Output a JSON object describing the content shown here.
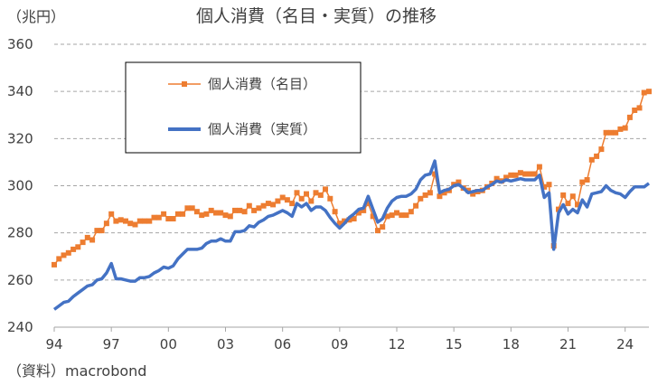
{
  "chart_data": {
    "type": "line",
    "title": "個人消費（名目・実質）の推移",
    "unit_label": "（兆円）",
    "source": "（資料）macrobond",
    "ylim": [
      240,
      360
    ],
    "yticks": [
      240,
      260,
      280,
      300,
      320,
      340,
      360
    ],
    "xlim": [
      1994.0,
      2025.25
    ],
    "xticks": [
      {
        "x": 1994,
        "label": "94"
      },
      {
        "x": 1997,
        "label": "97"
      },
      {
        "x": 2000,
        "label": "00"
      },
      {
        "x": 2003,
        "label": "03"
      },
      {
        "x": 2006,
        "label": "06"
      },
      {
        "x": 2009,
        "label": "09"
      },
      {
        "x": 2012,
        "label": "12"
      },
      {
        "x": 2015,
        "label": "15"
      },
      {
        "x": 2018,
        "label": "18"
      },
      {
        "x": 2021,
        "label": "21"
      },
      {
        "x": 2024,
        "label": "24"
      }
    ],
    "legend_position": "top-left",
    "grid": true,
    "series": [
      {
        "name": "個人消費（名目）",
        "color": "#ed7d31",
        "marker": "square",
        "values": [
          [
            1994.0,
            266.5
          ],
          [
            1994.25,
            269
          ],
          [
            1994.5,
            270.5
          ],
          [
            1994.75,
            271.5
          ],
          [
            1995.0,
            273
          ],
          [
            1995.25,
            274
          ],
          [
            1995.5,
            276
          ],
          [
            1995.75,
            278
          ],
          [
            1996.0,
            277
          ],
          [
            1996.25,
            281
          ],
          [
            1996.5,
            281
          ],
          [
            1996.75,
            284
          ],
          [
            1997.0,
            288
          ],
          [
            1997.25,
            285
          ],
          [
            1997.5,
            285.5
          ],
          [
            1997.75,
            285
          ],
          [
            1998.0,
            284
          ],
          [
            1998.25,
            283.5
          ],
          [
            1998.5,
            285
          ],
          [
            1998.75,
            285
          ],
          [
            1999.0,
            285
          ],
          [
            1999.25,
            286.5
          ],
          [
            1999.5,
            286.5
          ],
          [
            1999.75,
            288
          ],
          [
            2000.0,
            286
          ],
          [
            2000.25,
            286
          ],
          [
            2000.5,
            288
          ],
          [
            2000.75,
            288
          ],
          [
            2001.0,
            290.5
          ],
          [
            2001.25,
            290.5
          ],
          [
            2001.5,
            289
          ],
          [
            2001.75,
            287.5
          ],
          [
            2002.0,
            288
          ],
          [
            2002.25,
            289.5
          ],
          [
            2002.5,
            288.5
          ],
          [
            2002.75,
            288.5
          ],
          [
            2003.0,
            287.5
          ],
          [
            2003.25,
            287
          ],
          [
            2003.5,
            289.5
          ],
          [
            2003.75,
            289.5
          ],
          [
            2004.0,
            289
          ],
          [
            2004.25,
            291.5
          ],
          [
            2004.5,
            289.5
          ],
          [
            2004.75,
            290.5
          ],
          [
            2005.0,
            291.5
          ],
          [
            2005.25,
            292.5
          ],
          [
            2005.5,
            292
          ],
          [
            2005.75,
            293.5
          ],
          [
            2006.0,
            295
          ],
          [
            2006.25,
            294
          ],
          [
            2006.5,
            292.5
          ],
          [
            2006.75,
            297
          ],
          [
            2007.0,
            294.5
          ],
          [
            2007.25,
            296.5
          ],
          [
            2007.5,
            293.5
          ],
          [
            2007.75,
            297
          ],
          [
            2008.0,
            296
          ],
          [
            2008.25,
            298.5
          ],
          [
            2008.5,
            294.5
          ],
          [
            2008.75,
            289
          ],
          [
            2009.0,
            284
          ],
          [
            2009.25,
            285
          ],
          [
            2009.5,
            285.5
          ],
          [
            2009.75,
            286
          ],
          [
            2010.0,
            288.5
          ],
          [
            2010.25,
            289.5
          ],
          [
            2010.5,
            292.5
          ],
          [
            2010.75,
            287
          ],
          [
            2011.0,
            281
          ],
          [
            2011.25,
            282.5
          ],
          [
            2011.5,
            287
          ],
          [
            2011.75,
            287.5
          ],
          [
            2012.0,
            288.5
          ],
          [
            2012.25,
            287.5
          ],
          [
            2012.5,
            287.5
          ],
          [
            2012.75,
            289
          ],
          [
            2013.0,
            291.5
          ],
          [
            2013.25,
            294.5
          ],
          [
            2013.5,
            296
          ],
          [
            2013.75,
            297
          ],
          [
            2014.0,
            305
          ],
          [
            2014.25,
            295.5
          ],
          [
            2014.5,
            297
          ],
          [
            2014.75,
            298
          ],
          [
            2015.0,
            300.5
          ],
          [
            2015.25,
            301.5
          ],
          [
            2015.5,
            299
          ],
          [
            2015.75,
            298
          ],
          [
            2016.0,
            296.5
          ],
          [
            2016.25,
            297.5
          ],
          [
            2016.5,
            298
          ],
          [
            2016.75,
            299.5
          ],
          [
            2017.0,
            301
          ],
          [
            2017.25,
            303
          ],
          [
            2017.5,
            302
          ],
          [
            2017.75,
            303.5
          ],
          [
            2018.0,
            304.5
          ],
          [
            2018.25,
            304.5
          ],
          [
            2018.5,
            305.5
          ],
          [
            2018.75,
            305
          ],
          [
            2019.0,
            305
          ],
          [
            2019.25,
            305
          ],
          [
            2019.5,
            308
          ],
          [
            2019.75,
            299.5
          ],
          [
            2020.0,
            300.5
          ],
          [
            2020.25,
            274.5
          ],
          [
            2020.5,
            290
          ],
          [
            2020.75,
            296
          ],
          [
            2021.0,
            292.5
          ],
          [
            2021.25,
            295.5
          ],
          [
            2021.5,
            292
          ],
          [
            2021.75,
            301.5
          ],
          [
            2022.0,
            302.5
          ],
          [
            2022.25,
            311
          ],
          [
            2022.5,
            312.5
          ],
          [
            2022.75,
            315.5
          ],
          [
            2023.0,
            322.5
          ],
          [
            2023.25,
            322.5
          ],
          [
            2023.5,
            322.5
          ],
          [
            2023.75,
            324
          ],
          [
            2024.0,
            324.5
          ],
          [
            2024.25,
            329
          ],
          [
            2024.5,
            332
          ],
          [
            2024.75,
            333
          ],
          [
            2025.0,
            339.5
          ],
          [
            2025.25,
            340
          ]
        ]
      },
      {
        "name": "個人消費（実質）",
        "color": "#4472c4",
        "marker": "none",
        "values": [
          [
            1994.0,
            247.5
          ],
          [
            1994.25,
            249
          ],
          [
            1994.5,
            250.5
          ],
          [
            1994.75,
            251
          ],
          [
            1995.0,
            253
          ],
          [
            1995.25,
            254.5
          ],
          [
            1995.5,
            256
          ],
          [
            1995.75,
            257.5
          ],
          [
            1996.0,
            258
          ],
          [
            1996.25,
            260
          ],
          [
            1996.5,
            260.5
          ],
          [
            1996.75,
            263
          ],
          [
            1997.0,
            267
          ],
          [
            1997.25,
            260.5
          ],
          [
            1997.5,
            260.5
          ],
          [
            1997.75,
            260
          ],
          [
            1998.0,
            259.5
          ],
          [
            1998.25,
            259.5
          ],
          [
            1998.5,
            261
          ],
          [
            1998.75,
            261
          ],
          [
            1999.0,
            261.5
          ],
          [
            1999.25,
            263
          ],
          [
            1999.5,
            264
          ],
          [
            1999.75,
            265.5
          ],
          [
            2000.0,
            265
          ],
          [
            2000.25,
            266
          ],
          [
            2000.5,
            269
          ],
          [
            2000.75,
            271
          ],
          [
            2001.0,
            273
          ],
          [
            2001.25,
            273
          ],
          [
            2001.5,
            273
          ],
          [
            2001.75,
            273.5
          ],
          [
            2002.0,
            275.5
          ],
          [
            2002.25,
            276.5
          ],
          [
            2002.5,
            276.5
          ],
          [
            2002.75,
            277.5
          ],
          [
            2003.0,
            276.5
          ],
          [
            2003.25,
            276.5
          ],
          [
            2003.5,
            280.5
          ],
          [
            2003.75,
            280.5
          ],
          [
            2004.0,
            281
          ],
          [
            2004.25,
            283
          ],
          [
            2004.5,
            282.5
          ],
          [
            2004.75,
            284.5
          ],
          [
            2005.0,
            285.5
          ],
          [
            2005.25,
            287
          ],
          [
            2005.5,
            287.5
          ],
          [
            2005.75,
            288.5
          ],
          [
            2006.0,
            289.5
          ],
          [
            2006.25,
            288.5
          ],
          [
            2006.5,
            287
          ],
          [
            2006.75,
            292.5
          ],
          [
            2007.0,
            291
          ],
          [
            2007.25,
            292.5
          ],
          [
            2007.5,
            289.5
          ],
          [
            2007.75,
            291
          ],
          [
            2008.0,
            291
          ],
          [
            2008.25,
            289.5
          ],
          [
            2008.5,
            286.5
          ],
          [
            2008.75,
            284
          ],
          [
            2009.0,
            282
          ],
          [
            2009.25,
            284
          ],
          [
            2009.5,
            286.5
          ],
          [
            2009.75,
            288
          ],
          [
            2010.0,
            290
          ],
          [
            2010.25,
            290.5
          ],
          [
            2010.5,
            295.5
          ],
          [
            2010.75,
            290
          ],
          [
            2011.0,
            284.5
          ],
          [
            2011.25,
            286
          ],
          [
            2011.5,
            290.5
          ],
          [
            2011.75,
            293.5
          ],
          [
            2012.0,
            295
          ],
          [
            2012.25,
            295.5
          ],
          [
            2012.5,
            295.5
          ],
          [
            2012.75,
            296.5
          ],
          [
            2013.0,
            298.5
          ],
          [
            2013.25,
            302.5
          ],
          [
            2013.5,
            304.5
          ],
          [
            2013.75,
            305
          ],
          [
            2014.0,
            310.5
          ],
          [
            2014.25,
            297
          ],
          [
            2014.5,
            298
          ],
          [
            2014.75,
            298.5
          ],
          [
            2015.0,
            300
          ],
          [
            2015.25,
            300.5
          ],
          [
            2015.5,
            299
          ],
          [
            2015.75,
            297
          ],
          [
            2016.0,
            297.5
          ],
          [
            2016.25,
            298
          ],
          [
            2016.5,
            298
          ],
          [
            2016.75,
            299.5
          ],
          [
            2017.0,
            300.5
          ],
          [
            2017.25,
            302
          ],
          [
            2017.5,
            301.5
          ],
          [
            2017.75,
            302.5
          ],
          [
            2018.0,
            302
          ],
          [
            2018.25,
            302.5
          ],
          [
            2018.5,
            303
          ],
          [
            2018.75,
            302.5
          ],
          [
            2019.0,
            302.5
          ],
          [
            2019.25,
            302.5
          ],
          [
            2019.5,
            304.5
          ],
          [
            2019.75,
            295
          ],
          [
            2020.0,
            297
          ],
          [
            2020.25,
            273
          ],
          [
            2020.5,
            288.5
          ],
          [
            2020.75,
            292
          ],
          [
            2021.0,
            288
          ],
          [
            2021.25,
            290
          ],
          [
            2021.5,
            288.5
          ],
          [
            2021.75,
            294
          ],
          [
            2022.0,
            291
          ],
          [
            2022.25,
            296.5
          ],
          [
            2022.5,
            297
          ],
          [
            2022.75,
            297.5
          ],
          [
            2023.0,
            300
          ],
          [
            2023.25,
            298
          ],
          [
            2023.5,
            297
          ],
          [
            2023.75,
            296.5
          ],
          [
            2024.0,
            295
          ],
          [
            2024.25,
            297.5
          ],
          [
            2024.5,
            299.5
          ],
          [
            2024.75,
            299.5
          ],
          [
            2025.0,
            299.5
          ],
          [
            2025.25,
            301
          ]
        ]
      }
    ]
  }
}
